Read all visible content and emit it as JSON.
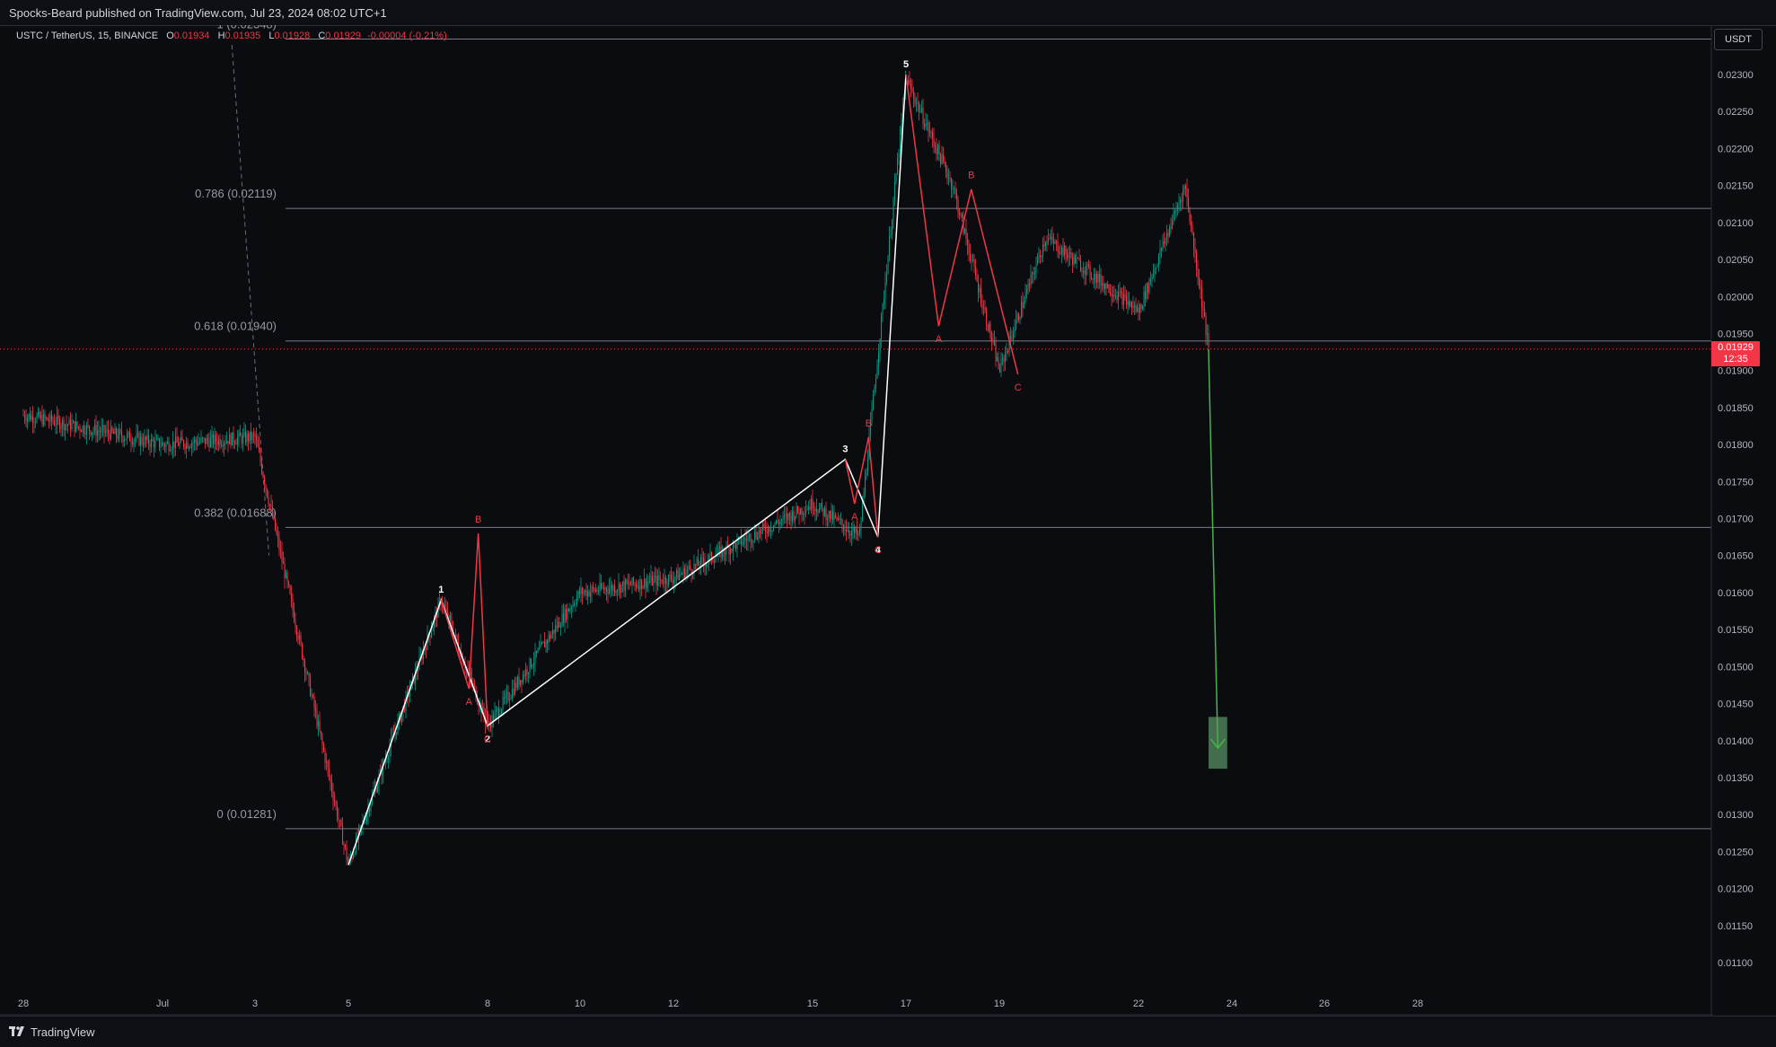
{
  "header": {
    "publisher_line": "Spocks-Beard published on TradingView.com, Jul 23, 2024 08:02 UTC+1"
  },
  "legend": {
    "symbol": "USTC / TetherUS, 15, BINANCE",
    "o_label": "O",
    "o_value": "0.01934",
    "h_label": "H",
    "h_value": "0.01935",
    "l_label": "L",
    "l_value": "0.01928",
    "c_label": "C",
    "c_value": "0.01929",
    "change": "-0.00004 (-0.21%)"
  },
  "price_axis": {
    "currency_button": "USDT",
    "last_price": "0.01929",
    "countdown": "12:35"
  },
  "footer": {
    "brand": "TradingView"
  },
  "colors": {
    "background": "#0b0c10",
    "up": "#089981",
    "down": "#f23645",
    "wave_primary": "#ffffff",
    "wave_correction": "#f23645",
    "projection": "#4caf50",
    "target_box": "#4e7f57"
  },
  "chart_data": {
    "type": "candlestick",
    "timeframe": "15",
    "y_axis": {
      "ylim": [
        0.0106,
        0.0237
      ],
      "ticks": [
        "0.02300",
        "0.02250",
        "0.02200",
        "0.02150",
        "0.02100",
        "0.02050",
        "0.02000",
        "0.01950",
        "0.01900",
        "0.01850",
        "0.01800",
        "0.01750",
        "0.01700",
        "0.01650",
        "0.01600",
        "0.01550",
        "0.01500",
        "0.01450",
        "0.01400",
        "0.01350",
        "0.01300",
        "0.01250",
        "0.01200",
        "0.01150",
        "0.01100"
      ]
    },
    "x_axis": {
      "ticks": [
        "28",
        "Jul",
        "3",
        "5",
        "8",
        "10",
        "12",
        "15",
        "17",
        "19",
        "22",
        "24",
        "26",
        "28"
      ]
    },
    "price_path": [
      [
        "28",
        0.0184
      ],
      [
        "Jul",
        0.018
      ],
      [
        "3",
        0.0181
      ],
      [
        "5",
        0.01232
      ],
      [
        "7",
        0.0159
      ],
      [
        "8",
        0.0142
      ],
      [
        "10",
        0.016
      ],
      [
        "12",
        0.0162
      ],
      [
        "15",
        0.0172
      ],
      [
        "16",
        0.01675
      ],
      [
        "17",
        0.02295
      ],
      [
        "18",
        0.0215
      ],
      [
        "19",
        0.019
      ],
      [
        "20",
        0.0208
      ],
      [
        "22",
        0.0198
      ],
      [
        "23",
        0.0215
      ],
      [
        "23.5",
        0.01929
      ]
    ],
    "fibonacci": [
      {
        "label": "1 (0.02348)",
        "value": 0.02348
      },
      {
        "label": "0.786 (0.02119)",
        "value": 0.02119
      },
      {
        "label": "0.618 (0.01940)",
        "value": 0.0194
      },
      {
        "label": "0.382 (0.01688)",
        "value": 0.01688
      },
      {
        "label": "0 (0.01281)",
        "value": 0.01281
      }
    ],
    "elliott_wave": [
      {
        "label": "",
        "x": "5",
        "y": 0.01232
      },
      {
        "label": "1",
        "x": "7",
        "y": 0.0159
      },
      {
        "label": "2",
        "x": "8",
        "y": 0.0142
      },
      {
        "label": "3",
        "x": "15.7",
        "y": 0.0178
      },
      {
        "label": "4",
        "x": "16.4",
        "y": 0.01675
      },
      {
        "label": "5",
        "x": "17",
        "y": 0.023
      }
    ],
    "corrections": [
      {
        "points": [
          {
            "label": "",
            "x": "7",
            "y": 0.0159
          },
          {
            "label": "A",
            "x": "7.6",
            "y": 0.0147
          },
          {
            "label": "B",
            "x": "7.8",
            "y": 0.0168
          },
          {
            "label": "C",
            "x": "8",
            "y": 0.0142
          }
        ]
      },
      {
        "points": [
          {
            "label": "",
            "x": "15.7",
            "y": 0.0178
          },
          {
            "label": "A",
            "x": "15.9",
            "y": 0.0172
          },
          {
            "label": "B",
            "x": "16.2",
            "y": 0.0181
          },
          {
            "label": "C",
            "x": "16.4",
            "y": 0.01675
          }
        ]
      },
      {
        "points": [
          {
            "label": "",
            "x": "17",
            "y": 0.023
          },
          {
            "label": "A",
            "x": "17.7",
            "y": 0.0196
          },
          {
            "label": "B",
            "x": "18.4",
            "y": 0.02145
          },
          {
            "label": "C",
            "x": "19.4",
            "y": 0.01895
          }
        ]
      }
    ],
    "trendline": {
      "style": "dashed",
      "from": {
        "x": "2.5",
        "y": 0.0234
      },
      "to": {
        "x": "32.3",
        "y": 0.0165
      }
    },
    "projection": {
      "from": {
        "x": "23.5",
        "y": 0.01929
      },
      "to": {
        "x": "23.7",
        "y": 0.0139
      }
    },
    "target_zone": {
      "x_from": "23.5",
      "x_to": "23.9",
      "y_top": 0.01432,
      "y_bottom": 0.01362
    },
    "last_price": 0.01929
  }
}
